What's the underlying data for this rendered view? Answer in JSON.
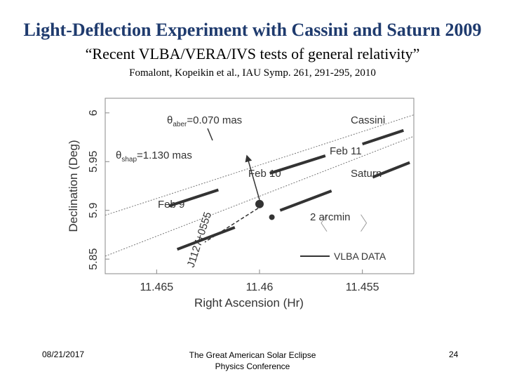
{
  "slide": {
    "title": "Light-Deflection Experiment with Cassini and Saturn 2009",
    "subtitle": "“Recent VLBA/VERA/IVS tests of general relativity”",
    "citation": "Fomalont, Kopeikin et al., IAU Symp. 261, 291-295, 2010"
  },
  "footer": {
    "date": "08/21/2017",
    "conference_line1": "The Great American Solar Eclipse",
    "conference_line2": "Physics Conference",
    "page": "24"
  },
  "chart_data": {
    "type": "line",
    "xlabel": "Right Ascension (Hr)",
    "ylabel": "Declination (Deg)",
    "xlim": [
      11.4675,
      11.4525
    ],
    "ylim": [
      5.835,
      6.015
    ],
    "x_ticks": [
      "11.465",
      "11.46",
      "11.455"
    ],
    "y_ticks": [
      "5.85",
      "5.9",
      "5.95",
      "6"
    ],
    "series": [
      {
        "name": "Cassini",
        "predicted": [
          [
            11.4675,
            5.895
          ],
          [
            11.4525,
            5.998
          ]
        ],
        "observed": [
          [
            [
              11.4644,
              5.9045
            ],
            [
              11.462,
              5.921
            ]
          ],
          [
            [
              11.4595,
              5.938
            ],
            [
              11.4568,
              5.956
            ]
          ],
          [
            [
              11.455,
              5.968
            ],
            [
              11.453,
              5.982
            ]
          ]
        ]
      },
      {
        "name": "Saturn",
        "predicted": [
          [
            11.4675,
            5.853
          ],
          [
            11.4525,
            5.976
          ]
        ],
        "observed": [
          [
            [
              11.464,
              5.86
            ],
            [
              11.4612,
              5.8825
            ]
          ],
          [
            [
              11.459,
              5.9
            ],
            [
              11.4565,
              5.92
            ]
          ],
          [
            [
              11.4545,
              5.934
            ],
            [
              11.4527,
              5.949
            ]
          ]
        ]
      }
    ],
    "annotations": {
      "cassini_label": "Cassini",
      "saturn_label": "Saturn",
      "feb9": "Feb 9",
      "feb10": "Feb 10",
      "feb11": "Feb 11",
      "theta_aber_symbol": "θ",
      "theta_aber_sub": "aber",
      "theta_aber_value": "=0.070  mas",
      "theta_shap_symbol": "θ",
      "theta_shap_sub": "shap",
      "theta_shap_value": "=1.130  mas",
      "scale_label": "2  arcmin",
      "legend_label": "VLBA DATA",
      "source_label": "J1127+0555"
    },
    "source_position": [
      11.46,
      5.9065
    ],
    "saturn_position": [
      11.4594,
      5.893
    ],
    "aber_arrow_tip": [
      11.4606,
      5.955
    ],
    "scale_bar": {
      "x1": 11.457,
      "x2": 11.4548,
      "y": 5.887
    },
    "grid": false,
    "legend_position": "bottom-right"
  }
}
